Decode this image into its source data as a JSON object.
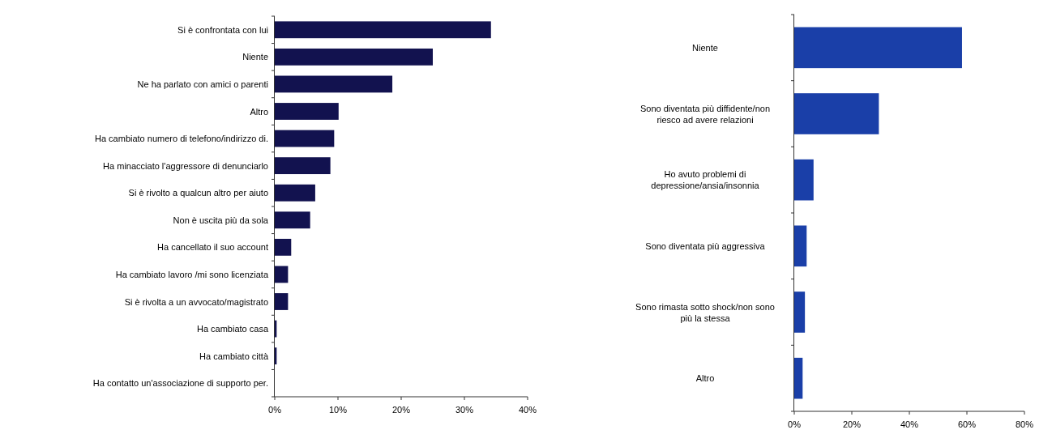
{
  "chart_data": [
    {
      "type": "bar",
      "orientation": "horizontal",
      "categories": [
        "Si è confrontata con lui",
        "Niente",
        "Ne ha parlato con amici o parenti",
        "Altro",
        "Ha cambiato numero di telefono/indirizzo di.",
        "Ha minacciato l'aggressore di denunciarlo",
        "Si è rivolto a qualcun altro per aiuto",
        "Non è uscita più da sola",
        "Ha cancellato il suo account",
        "Ha cambiato lavoro /mi sono licenziata",
        "Si è rivolta a un avvocato/magistrato",
        "Ha cambiato casa",
        "Ha cambiato città",
        "Ha contatto un'associazione di supporto per."
      ],
      "values": [
        34.2,
        25,
        18.6,
        10.1,
        9.4,
        8.8,
        6.4,
        5.6,
        2.6,
        2.1,
        2.1,
        0.3,
        0.3,
        0
      ],
      "color": "#12124f",
      "xlim": [
        0,
        40
      ],
      "xticks": [
        {
          "value": 0,
          "label": "0%"
        },
        {
          "value": 10,
          "label": "10%"
        },
        {
          "value": 20,
          "label": "20%"
        },
        {
          "value": 30,
          "label": "30%"
        },
        {
          "value": 40,
          "label": "40%"
        }
      ]
    },
    {
      "type": "bar",
      "orientation": "horizontal",
      "categories": [
        "Niente",
        "Sono diventata più diffidente/non riesco ad avere relazioni",
        "Ho avuto problemi di depressione/ansia/insonnia",
        "Sono diventata più aggressiva",
        "Sono rimasta sotto shock/non sono più la stessa",
        "Altro"
      ],
      "values": [
        58.3,
        29.4,
        6.7,
        4.3,
        3.7,
        2.9
      ],
      "color": "#1a3fa8",
      "xlim": [
        0,
        80
      ],
      "xticks": [
        {
          "value": 0,
          "label": "0%"
        },
        {
          "value": 20,
          "label": "20%"
        },
        {
          "value": 40,
          "label": "40%"
        },
        {
          "value": 60,
          "label": "60%"
        },
        {
          "value": 80,
          "label": "80%"
        }
      ]
    }
  ]
}
